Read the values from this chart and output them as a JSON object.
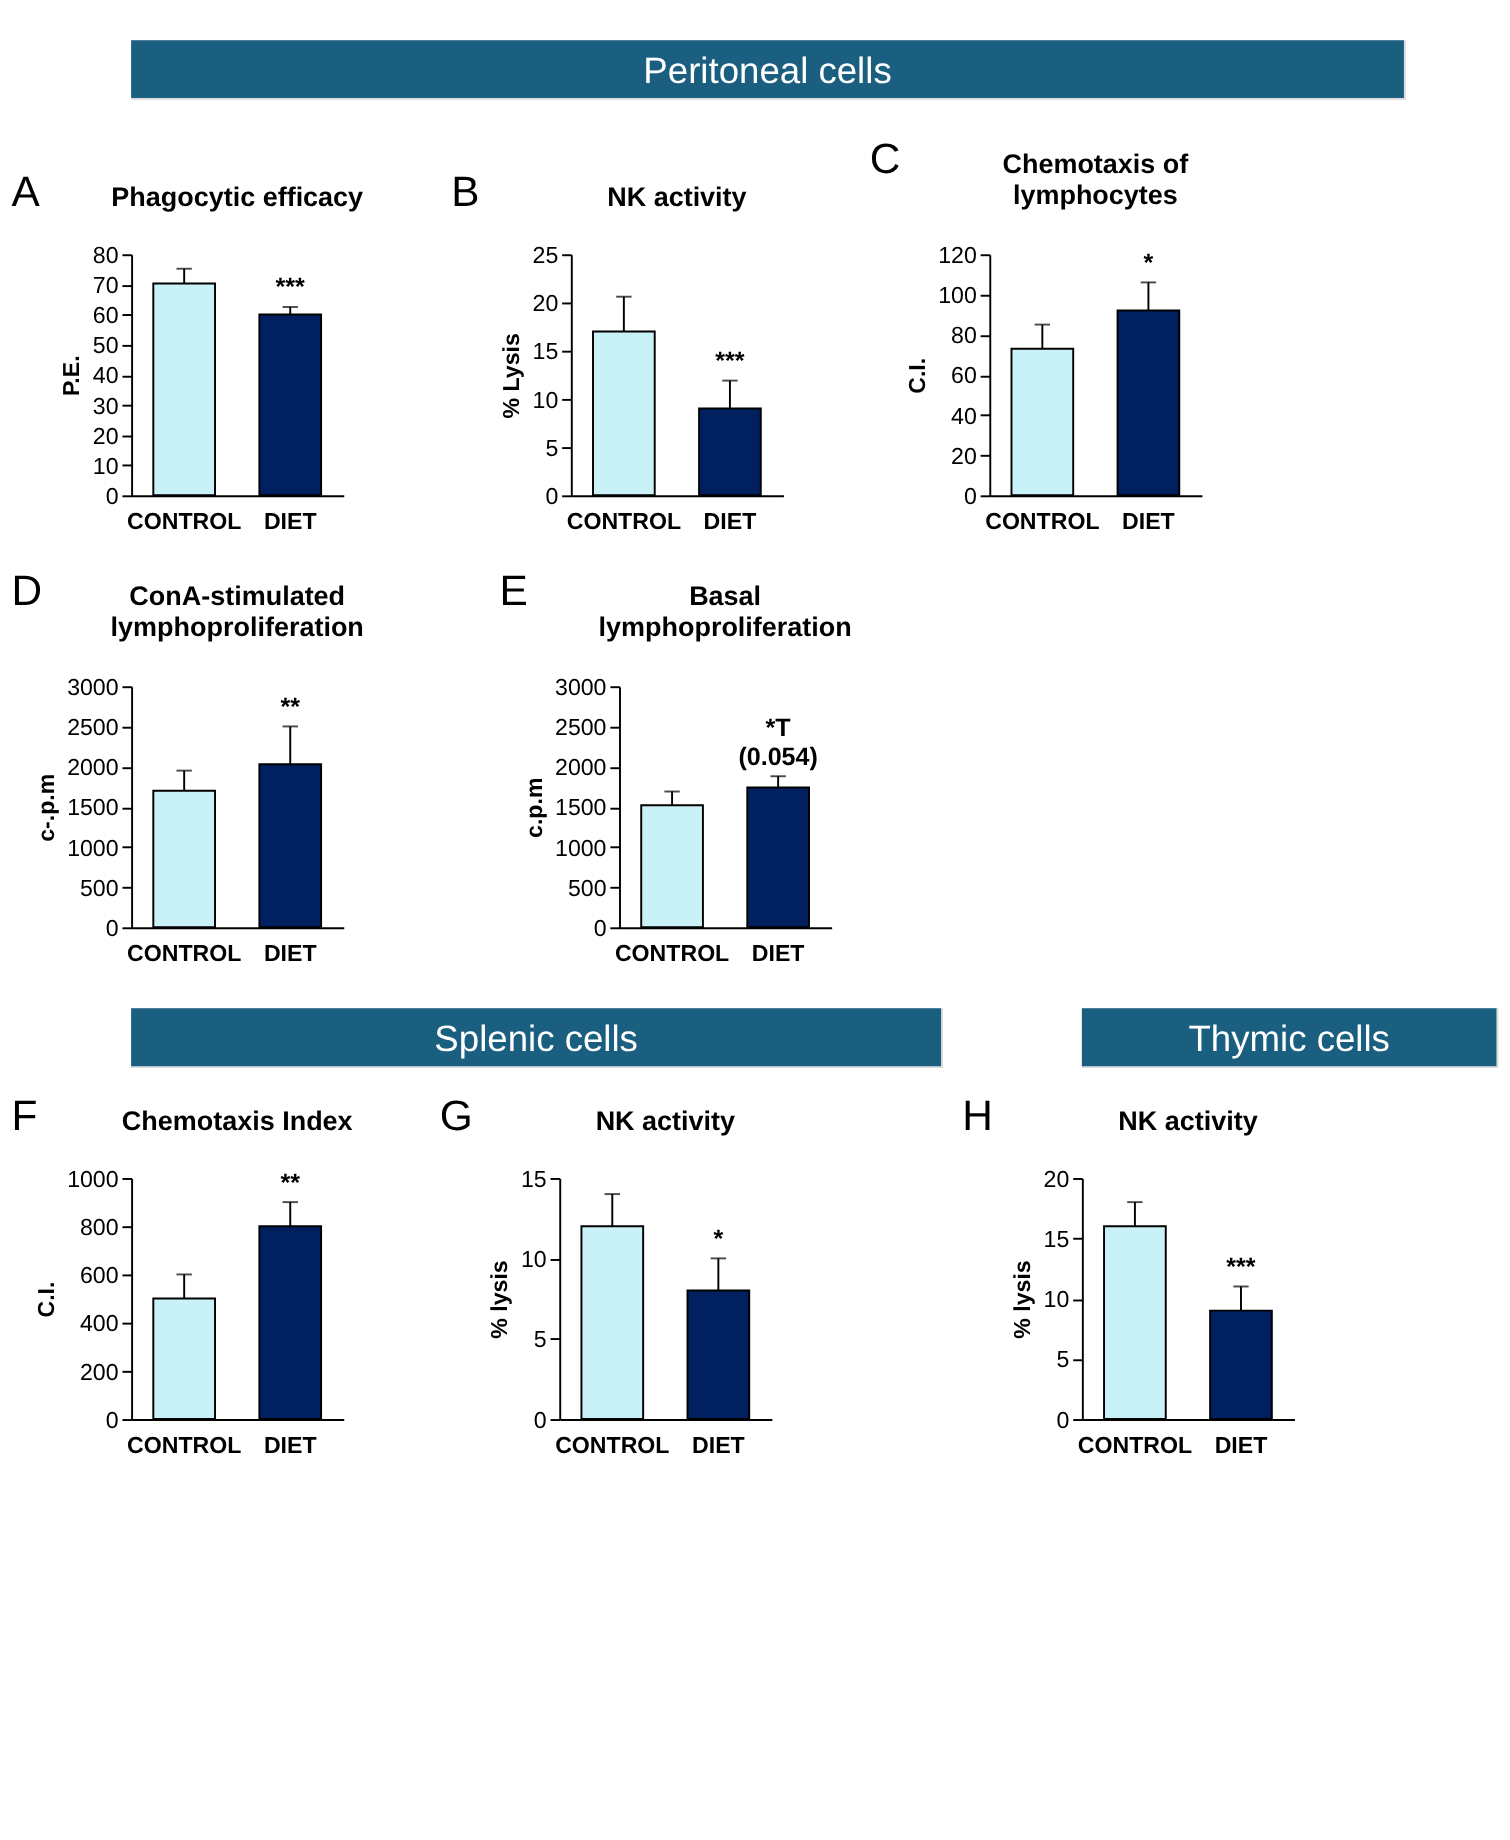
{
  "chart_data": [
    {
      "type": "bar",
      "title": "Phagocytic efficacy",
      "ylabel": "P.E.",
      "categories": [
        "CONTROL",
        "DIET"
      ],
      "colors": [
        "#c9f1f8",
        "#002060"
      ],
      "values": [
        70.3,
        60
      ],
      "errors": [
        [
          70.3,
          75.2
        ],
        [
          60,
          62.5
        ]
      ],
      "ylim": [
        0,
        80
      ],
      "yticks": [
        0,
        10,
        20,
        30,
        40,
        50,
        60,
        70,
        80
      ],
      "grid": false,
      "annotations": [
        "A",
        "Peritoneal cells",
        {
          "text": "***",
          "x": "DIET",
          "y": 62.5
        }
      ]
    },
    {
      "type": "bar",
      "title": "NK activity",
      "ylabel": "% Lysis",
      "categories": [
        "CONTROL",
        "DIET"
      ],
      "colors": [
        "#c9f1f8",
        "#002060"
      ],
      "values": [
        17,
        9
      ],
      "errors": [
        [
          17,
          20.6
        ],
        [
          9,
          11.9
        ]
      ],
      "ylim": [
        0,
        25
      ],
      "yticks": [
        0,
        5,
        10,
        15,
        20,
        25
      ],
      "grid": false,
      "annotations": [
        "B",
        {
          "text": "***",
          "x": "DIET",
          "y": 11.9
        }
      ]
    },
    {
      "type": "bar",
      "title": "Chemotaxis of\nlymphocytes",
      "ylabel": "C.I.",
      "categories": [
        "CONTROL",
        "DIET"
      ],
      "colors": [
        "#c9f1f8",
        "#002060"
      ],
      "values": [
        73,
        92
      ],
      "errors": [
        [
          73,
          85
        ],
        [
          92,
          106
        ]
      ],
      "ylim": [
        0,
        120
      ],
      "yticks": [
        0,
        20,
        40,
        60,
        80,
        100,
        120
      ],
      "grid": false,
      "annotations": [
        "C",
        {
          "text": "*",
          "x": "DIET",
          "y": 106
        }
      ]
    },
    {
      "type": "bar",
      "title": "ConA-stimulated\nlymphoproliferation",
      "ylabel": "c-.p.m",
      "categories": [
        "CONTROL",
        "DIET"
      ],
      "colors": [
        "#c9f1f8",
        "#002060"
      ],
      "values": [
        1700,
        2030
      ],
      "errors": [
        [
          1700,
          1950
        ],
        [
          2030,
          2500
        ]
      ],
      "ylim": [
        0,
        3000
      ],
      "yticks": [
        0,
        500,
        1000,
        1500,
        2000,
        2500,
        3000
      ],
      "grid": false,
      "annotations": [
        "D",
        {
          "text": "**",
          "x": "DIET",
          "y": 2500
        }
      ]
    },
    {
      "type": "bar",
      "title": "Basal\nlymphoproliferation",
      "ylabel": "c.p.m",
      "categories": [
        "CONTROL",
        "DIET"
      ],
      "colors": [
        "#c9f1f8",
        "#002060"
      ],
      "values": [
        1520,
        1740
      ],
      "errors": [
        [
          1520,
          1690
        ],
        [
          1740,
          1880
        ]
      ],
      "ylim": [
        0,
        3000
      ],
      "yticks": [
        0,
        500,
        1000,
        1500,
        2000,
        2500,
        3000
      ],
      "grid": false,
      "annotations": [
        "E",
        {
          "text": "*T\n(0.054)",
          "x": "DIET",
          "y": 1880
        }
      ]
    },
    {
      "type": "bar",
      "title": "Chemotaxis Index",
      "ylabel": "C.I.",
      "categories": [
        "CONTROL",
        "DIET"
      ],
      "colors": [
        "#c9f1f8",
        "#002060"
      ],
      "values": [
        500,
        800
      ],
      "errors": [
        [
          500,
          600
        ],
        [
          800,
          900
        ]
      ],
      "ylim": [
        0,
        1000
      ],
      "yticks": [
        0,
        200,
        400,
        600,
        800,
        1000
      ],
      "grid": false,
      "annotations": [
        "F",
        "Splenic cells",
        {
          "text": "**",
          "x": "DIET",
          "y": 900
        }
      ]
    },
    {
      "type": "bar",
      "title": "NK activity",
      "ylabel": "% lysis",
      "categories": [
        "CONTROL",
        "DIET"
      ],
      "colors": [
        "#c9f1f8",
        "#002060"
      ],
      "values": [
        12,
        8
      ],
      "errors": [
        [
          12,
          14
        ],
        [
          8,
          10
        ]
      ],
      "ylim": [
        0,
        15
      ],
      "yticks": [
        0,
        5,
        10,
        15
      ],
      "grid": false,
      "annotations": [
        "G",
        {
          "text": "*",
          "x": "DIET",
          "y": 10
        }
      ]
    },
    {
      "type": "bar",
      "title": "NK activity",
      "ylabel": "% lysis",
      "categories": [
        "CONTROL",
        "DIET"
      ],
      "colors": [
        "#c9f1f8",
        "#002060"
      ],
      "values": [
        16,
        9
      ],
      "errors": [
        [
          16,
          18
        ],
        [
          9,
          11
        ]
      ],
      "ylim": [
        0,
        20
      ],
      "yticks": [
        0,
        5,
        10,
        15,
        20
      ],
      "grid": false,
      "annotations": [
        "H",
        "Thymic cells",
        {
          "text": "***",
          "x": "DIET",
          "y": 11
        }
      ]
    }
  ]
}
